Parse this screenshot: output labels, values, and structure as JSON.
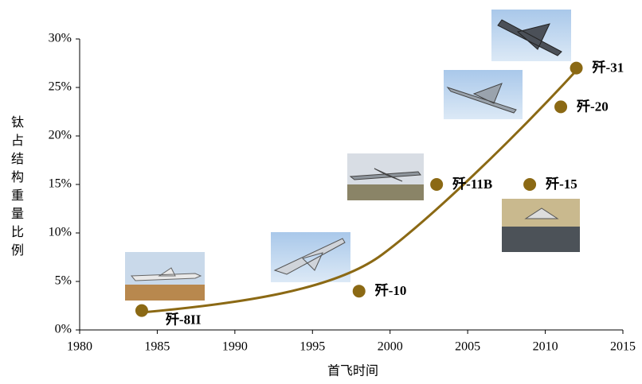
{
  "chart_data": {
    "type": "scatter",
    "x_label": "首飞时间",
    "y_label": "钛占结构重量比例",
    "labels": [
      "歼-8II",
      "歼-10",
      "歼-11B",
      "歼-15",
      "歼-20",
      "歼-31"
    ],
    "x": [
      1984,
      1998,
      2003,
      2009,
      2011,
      2012
    ],
    "values": [
      2,
      4,
      15,
      15,
      23,
      27
    ],
    "color": "#8b6914",
    "xlim": [
      1980,
      2015
    ],
    "xticks": [
      1980,
      1985,
      1990,
      1995,
      2000,
      2005,
      2010,
      2015
    ],
    "ylim": [
      0,
      30
    ],
    "yticks": [
      {
        "value": 0,
        "label": "0%"
      },
      {
        "value": 5,
        "label": "5%"
      },
      {
        "value": 10,
        "label": "10%"
      },
      {
        "value": 15,
        "label": "15%"
      },
      {
        "value": 20,
        "label": "20%"
      },
      {
        "value": 25,
        "label": "25%"
      },
      {
        "value": 30,
        "label": "30%"
      }
    ]
  }
}
